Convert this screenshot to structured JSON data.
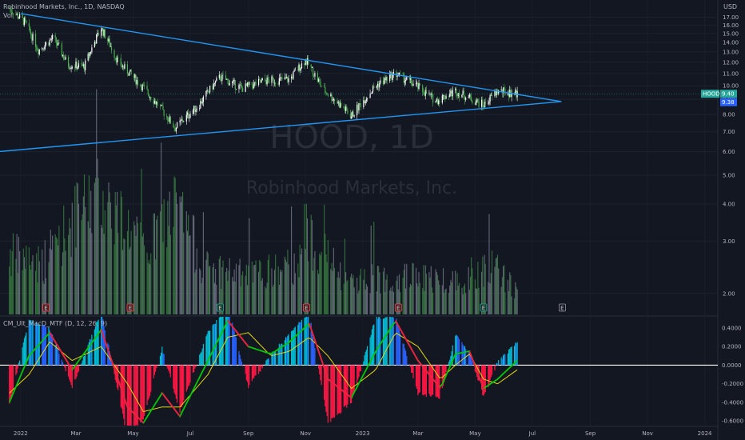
{
  "header": {
    "title": "Robinhood Markets, Inc., 1D, NASDAQ",
    "vol_label": "Vol",
    "indicator_label": "CM_Ult_MacD_MTF (D, 12, 26, 9)",
    "currency": "USD"
  },
  "watermark": {
    "symbol": "HOOD, 1D",
    "name": "Robinhood Markets, Inc."
  },
  "price_tag": {
    "symbol": "HOOD",
    "last": "9.40",
    "prev": "9.38",
    "color": "#26a69a",
    "prev_color": "#2962ff"
  },
  "colors": {
    "background": "#131722",
    "up": "#26a69a",
    "candle_up": "#ffffff",
    "candle_down": "#4caf50",
    "trendline": "#2196f3",
    "macd": "#00c805",
    "signal": "#e3d60f",
    "hist_pos_strong": "#00bcd4",
    "hist_pos_weak": "#2962ff",
    "hist_neg": "#ff1744",
    "zero": "#ffffff"
  },
  "chart_data": {
    "type": "candlestick",
    "x_ticks": [
      "2022",
      "Mar",
      "May",
      "Jul",
      "Sep",
      "Nov",
      "2023",
      "Mar",
      "May",
      "Jul",
      "Sep",
      "Nov",
      "2024"
    ],
    "price_axis": {
      "ticks": [
        "17.00",
        "16.00",
        "15.00",
        "14.00",
        "13.00",
        "12.00",
        "11.00",
        "10.00",
        "9.00",
        "8.00",
        "7.00",
        "6.00",
        "5.00",
        "4.00",
        "3.00",
        "2.00"
      ],
      "range": [
        1.7,
        18.5
      ]
    },
    "macd_axis": {
      "ticks": [
        "0.4000",
        "0.2000",
        "0.0000",
        "-0.2000",
        "-0.4000",
        "-0.6000"
      ],
      "range": [
        -0.65,
        0.52
      ]
    },
    "price_series": [
      {
        "date": "2021-12-20",
        "close": 18.2
      },
      {
        "date": "2022-01-05",
        "close": 16.4
      },
      {
        "date": "2022-01-20",
        "close": 13.2
      },
      {
        "date": "2022-02-05",
        "close": 14.5
      },
      {
        "date": "2022-02-20",
        "close": 11.8
      },
      {
        "date": "2022-03-10",
        "close": 11.6
      },
      {
        "date": "2022-03-28",
        "close": 15.6
      },
      {
        "date": "2022-04-15",
        "close": 12.0
      },
      {
        "date": "2022-05-05",
        "close": 10.4
      },
      {
        "date": "2022-05-20",
        "close": 9.2
      },
      {
        "date": "2022-06-15",
        "close": 7.2
      },
      {
        "date": "2022-07-10",
        "close": 8.6
      },
      {
        "date": "2022-08-02",
        "close": 10.7
      },
      {
        "date": "2022-08-25",
        "close": 9.8
      },
      {
        "date": "2022-09-20",
        "close": 10.4
      },
      {
        "date": "2022-10-15",
        "close": 10.5
      },
      {
        "date": "2022-11-01",
        "close": 12.2
      },
      {
        "date": "2022-11-20",
        "close": 9.7
      },
      {
        "date": "2022-12-20",
        "close": 7.9
      },
      {
        "date": "2023-01-15",
        "close": 10.0
      },
      {
        "date": "2023-02-05",
        "close": 11.0
      },
      {
        "date": "2023-03-01",
        "close": 9.9
      },
      {
        "date": "2023-03-20",
        "close": 8.9
      },
      {
        "date": "2023-04-10",
        "close": 9.6
      },
      {
        "date": "2023-04-25",
        "close": 9.1
      },
      {
        "date": "2023-05-10",
        "close": 8.6
      },
      {
        "date": "2023-05-25",
        "close": 9.6
      },
      {
        "date": "2023-06-15",
        "close": 9.4
      }
    ],
    "trendlines": [
      {
        "name": "upper",
        "from": {
          "date": "2022-01-01",
          "value": 17.5
        },
        "to": {
          "date": "2023-08-01",
          "value": 8.85
        }
      },
      {
        "name": "lower",
        "from": {
          "date": "2021-11-25",
          "value": 5.95
        },
        "to": {
          "date": "2023-08-01",
          "value": 8.85
        }
      }
    ],
    "volume": [
      {
        "date": "2021-12-20",
        "value": 2.9
      },
      {
        "date": "2022-01-25",
        "value": 2.7
      },
      {
        "date": "2022-03-25",
        "value": 5.0
      },
      {
        "date": "2022-05-15",
        "value": 2.9
      },
      {
        "date": "2022-06-15",
        "value": 4.5
      },
      {
        "date": "2022-07-15",
        "value": 2.6
      },
      {
        "date": "2022-09-01",
        "value": 2.4
      },
      {
        "date": "2022-10-20",
        "value": 2.6
      },
      {
        "date": "2022-11-01",
        "value": 3.6
      },
      {
        "date": "2022-12-10",
        "value": 2.3
      },
      {
        "date": "2023-02-10",
        "value": 2.4
      },
      {
        "date": "2023-04-15",
        "value": 2.3
      },
      {
        "date": "2023-05-15",
        "value": 2.7
      },
      {
        "date": "2023-06-15",
        "value": 2.1
      }
    ],
    "earnings_markers": [
      "E",
      "E",
      "E",
      "E",
      "E",
      "E",
      "E",
      "E"
    ],
    "macd_series": [
      {
        "date": "2021-12-20",
        "macd": -0.4,
        "signal": -0.3
      },
      {
        "date": "2022-01-10",
        "macd": 0.1,
        "signal": -0.1
      },
      {
        "date": "2022-02-01",
        "macd": 0.35,
        "signal": 0.25
      },
      {
        "date": "2022-02-25",
        "macd": -0.05,
        "signal": 0.05
      },
      {
        "date": "2022-03-28",
        "macd": 0.38,
        "signal": 0.2
      },
      {
        "date": "2022-04-25",
        "macd": -0.45,
        "signal": -0.2
      },
      {
        "date": "2022-05-12",
        "macd": -0.62,
        "signal": -0.5
      },
      {
        "date": "2022-06-01",
        "macd": -0.3,
        "signal": -0.45
      },
      {
        "date": "2022-06-20",
        "macd": -0.55,
        "signal": -0.45
      },
      {
        "date": "2022-07-20",
        "macd": 0.05,
        "signal": -0.1
      },
      {
        "date": "2022-08-10",
        "macd": 0.48,
        "signal": 0.3
      },
      {
        "date": "2022-09-01",
        "macd": 0.2,
        "signal": 0.35
      },
      {
        "date": "2022-09-25",
        "macd": 0.12,
        "signal": 0.1
      },
      {
        "date": "2022-10-15",
        "macd": 0.25,
        "signal": 0.15
      },
      {
        "date": "2022-11-05",
        "macd": 0.45,
        "signal": 0.3
      },
      {
        "date": "2022-11-25",
        "macd": -0.15,
        "signal": 0.1
      },
      {
        "date": "2022-12-20",
        "macd": -0.35,
        "signal": -0.25
      },
      {
        "date": "2023-01-15",
        "macd": 0.15,
        "signal": -0.05
      },
      {
        "date": "2023-02-05",
        "macd": 0.48,
        "signal": 0.35
      },
      {
        "date": "2023-03-01",
        "macd": 0.05,
        "signal": 0.2
      },
      {
        "date": "2023-03-25",
        "macd": -0.25,
        "signal": -0.15
      },
      {
        "date": "2023-04-10",
        "macd": 0.12,
        "signal": 0.0
      },
      {
        "date": "2023-04-25",
        "macd": 0.15,
        "signal": 0.12
      },
      {
        "date": "2023-05-10",
        "macd": -0.25,
        "signal": -0.15
      },
      {
        "date": "2023-05-25",
        "macd": -0.15,
        "signal": -0.2
      },
      {
        "date": "2023-06-15",
        "macd": 0.05,
        "signal": -0.05
      }
    ]
  }
}
